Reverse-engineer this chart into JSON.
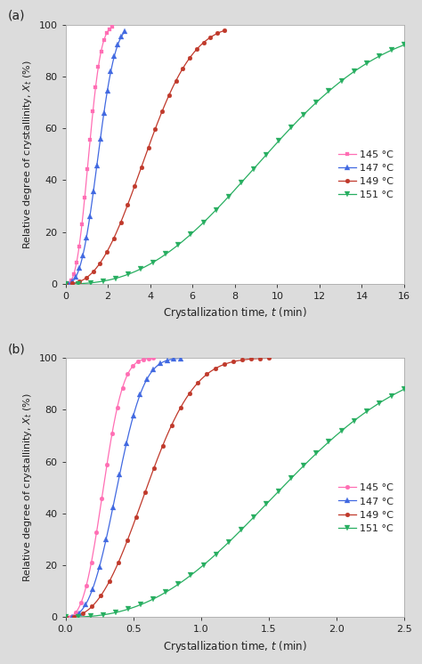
{
  "panel_a": {
    "label": "(a)",
    "xlim": [
      0,
      16
    ],
    "xticks": [
      0,
      2,
      4,
      6,
      8,
      10,
      12,
      14,
      16
    ],
    "ylim": [
      0,
      100
    ],
    "yticks": [
      0,
      20,
      40,
      60,
      80,
      100
    ],
    "series": [
      {
        "label": "145 °C",
        "color": "#ff6eb4",
        "marker": "s",
        "markersize": 3.5,
        "t_half": 1.1,
        "avrami_n": 2.8,
        "t_start": 0.0,
        "t_end": 2.2,
        "n_points": 18
      },
      {
        "label": "147 °C",
        "color": "#4169e1",
        "marker": "^",
        "markersize": 4.5,
        "t_half": 1.55,
        "avrami_n": 2.8,
        "t_start": 0.0,
        "t_end": 2.8,
        "n_points": 18
      },
      {
        "label": "149 °C",
        "color": "#c0392b",
        "marker": "o",
        "markersize": 3.5,
        "t_half": 3.8,
        "avrami_n": 2.5,
        "t_start": 0.0,
        "t_end": 7.5,
        "n_points": 24
      },
      {
        "label": "151 °C",
        "color": "#27ae60",
        "marker": "v",
        "markersize": 4.5,
        "t_half": 9.5,
        "avrami_n": 2.5,
        "t_start": 0.0,
        "t_end": 16.0,
        "n_points": 28
      }
    ]
  },
  "panel_b": {
    "label": "(b)",
    "xlim": [
      0,
      2.5
    ],
    "xticks": [
      0.0,
      0.5,
      1.0,
      1.5,
      2.0,
      2.5
    ],
    "ylim": [
      0,
      100
    ],
    "yticks": [
      0,
      20,
      40,
      60,
      80,
      100
    ],
    "series": [
      {
        "label": "145 °C",
        "color": "#ff6eb4",
        "marker": "o",
        "markersize": 3.5,
        "t_half": 0.28,
        "avrami_n": 2.8,
        "t_start": 0.0,
        "t_end": 0.65,
        "n_points": 18
      },
      {
        "label": "147 °C",
        "color": "#4169e1",
        "marker": "^",
        "markersize": 4.5,
        "t_half": 0.38,
        "avrami_n": 2.8,
        "t_start": 0.0,
        "t_end": 0.85,
        "n_points": 18
      },
      {
        "label": "149 °C",
        "color": "#c0392b",
        "marker": "o",
        "markersize": 3.5,
        "t_half": 0.6,
        "avrami_n": 2.5,
        "t_start": 0.0,
        "t_end": 1.5,
        "n_points": 24
      },
      {
        "label": "151 °C",
        "color": "#27ae60",
        "marker": "v",
        "markersize": 4.5,
        "t_half": 1.6,
        "avrami_n": 2.5,
        "t_start": 0.0,
        "t_end": 2.5,
        "n_points": 28
      }
    ]
  },
  "bg_color": "#dcdcdc",
  "plot_bg": "#ffffff",
  "xlabel": "Crystallization time, $t$ (min)",
  "ylabel": "Relative degree of crystallinity, $X_t$ (%)",
  "label_fontsize": 8.5,
  "tick_fontsize": 8,
  "panel_label_fontsize": 10
}
